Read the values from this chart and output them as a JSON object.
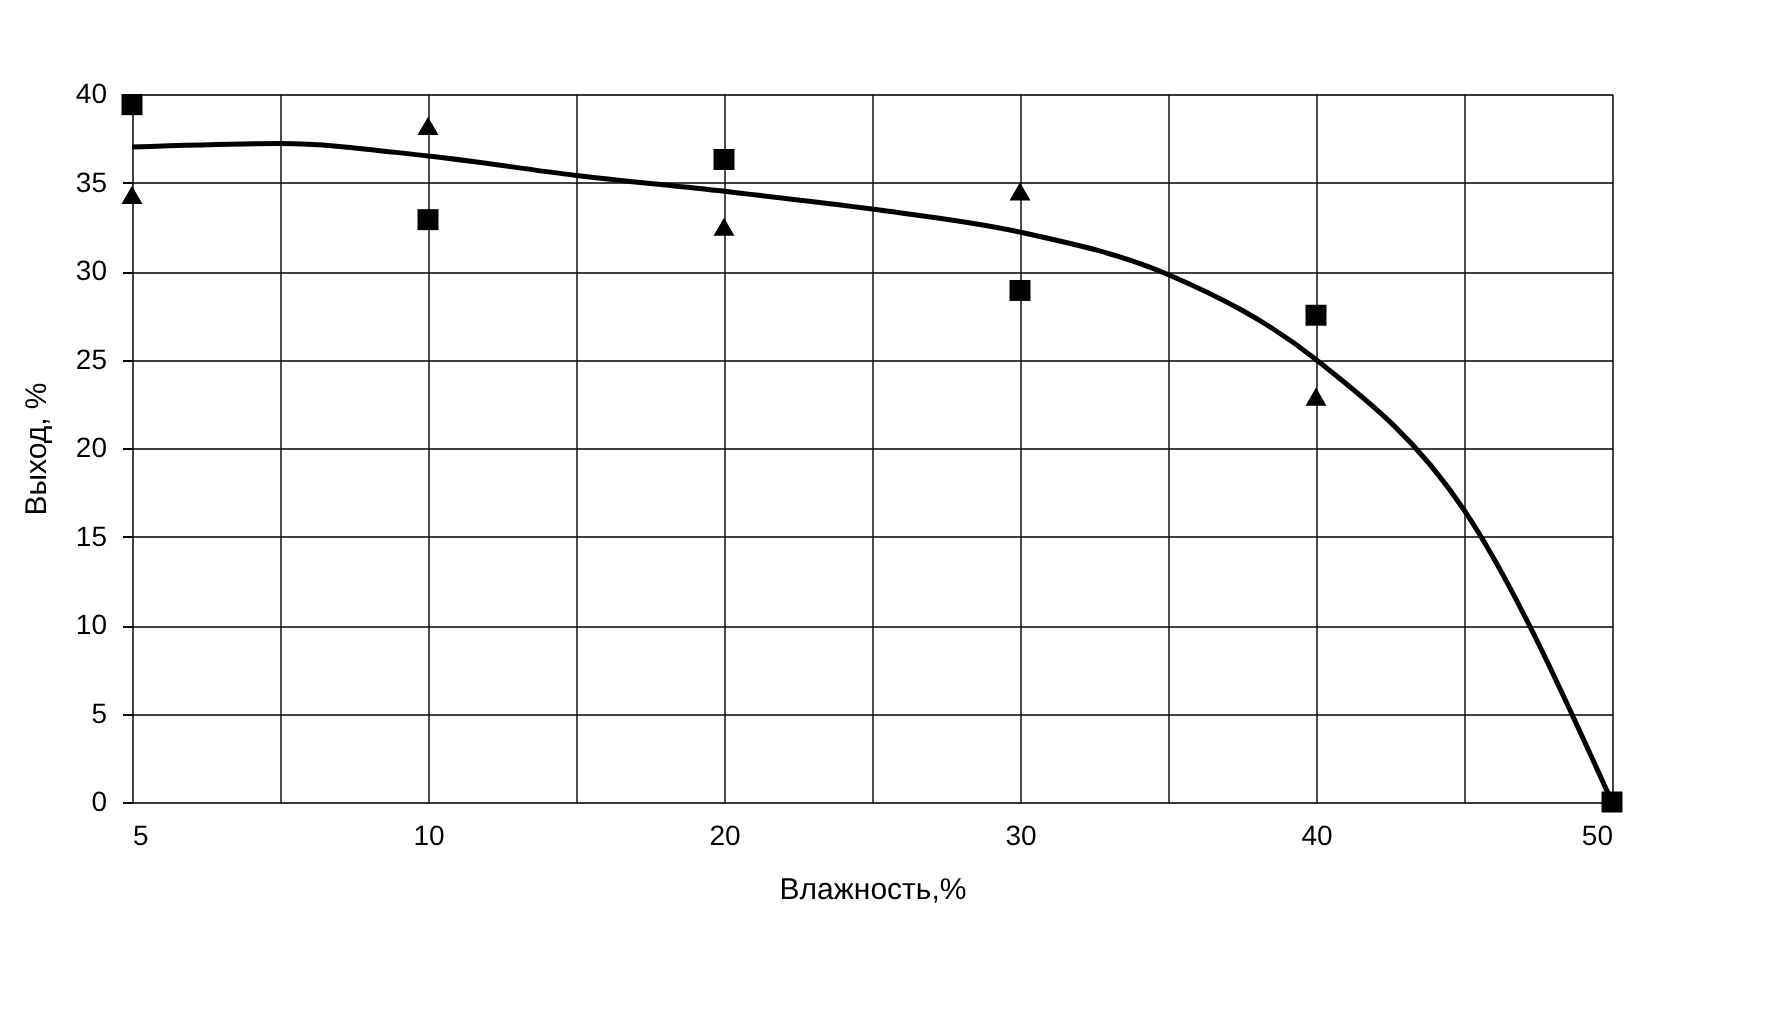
{
  "chart_data": {
    "type": "scatter",
    "xlabel": "Влажность,%",
    "ylabel": "Выход, %",
    "categories": [
      "5",
      null,
      "10",
      null,
      "20",
      null,
      "30",
      null,
      "40",
      null,
      "50"
    ],
    "ylim": [
      0,
      40
    ],
    "yticks": [
      0,
      5,
      10,
      15,
      20,
      25,
      30,
      35,
      40
    ],
    "grid": true,
    "series": [
      {
        "marker": "square",
        "color": "#000000",
        "values": [
          39.4,
          null,
          32.9,
          null,
          36.3,
          null,
          28.9,
          null,
          27.5,
          null,
          0
        ]
      },
      {
        "marker": "triangle",
        "color": "#000000",
        "values": [
          34.3,
          null,
          38.2,
          null,
          32.5,
          null,
          34.5,
          null,
          22.9,
          null,
          null
        ]
      },
      {
        "type": "line",
        "marker": "none",
        "line_style": "solid",
        "color": "#000000",
        "values": [
          37,
          37.2,
          36.5,
          35.4,
          34.5,
          33.5,
          32.2,
          29.8,
          25,
          16.5,
          0
        ]
      }
    ]
  }
}
